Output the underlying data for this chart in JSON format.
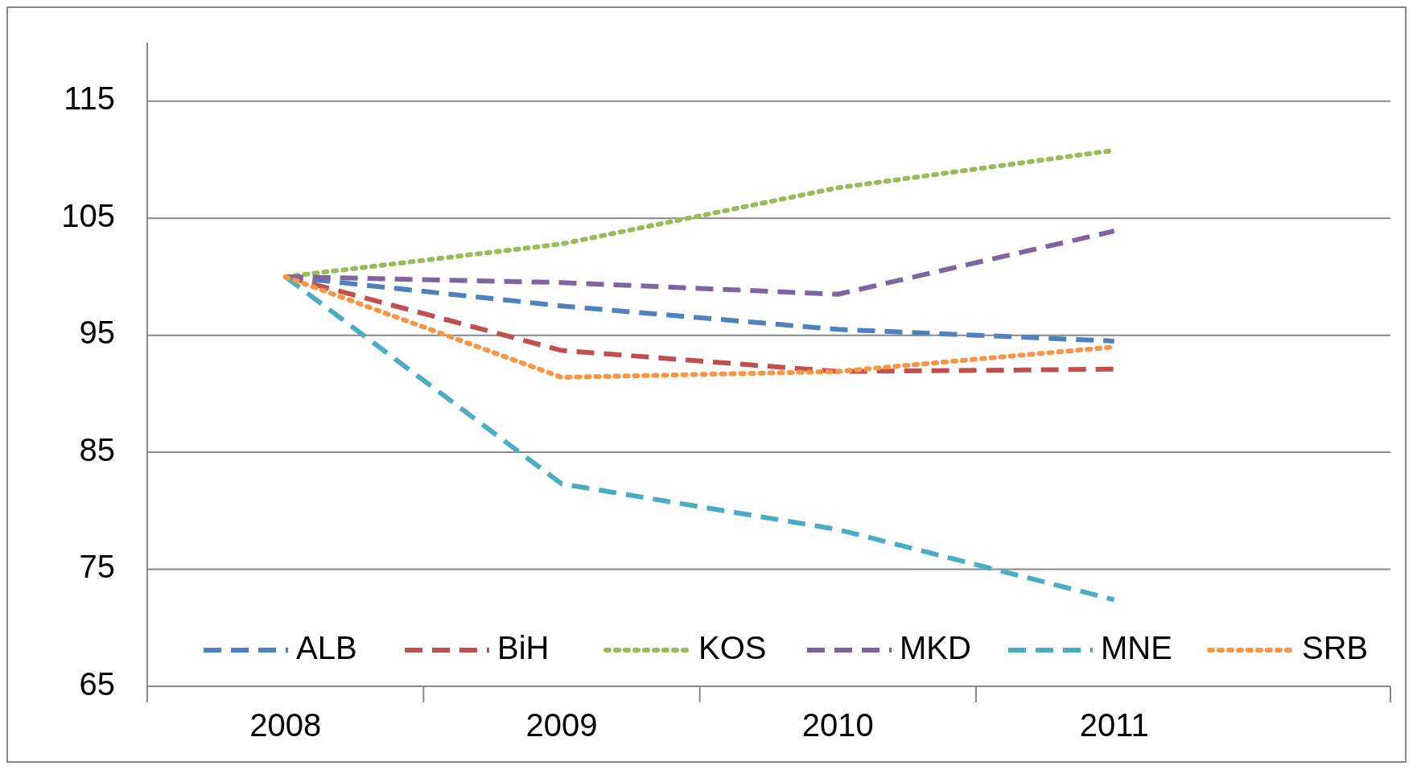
{
  "chart_data": {
    "type": "line",
    "categories": [
      "2008",
      "2009",
      "2010",
      "2011"
    ],
    "ylim": [
      65,
      120
    ],
    "yticks": [
      65,
      75,
      85,
      95,
      105,
      115
    ],
    "grid": "y",
    "legend": "bottom",
    "series": [
      {
        "name": "ALB",
        "color": "#4f81bd",
        "line_style": "dashed",
        "values": [
          100,
          97.5,
          95.5,
          94.5
        ]
      },
      {
        "name": "BiH",
        "color": "#c0504d",
        "line_style": "dashed",
        "values": [
          100,
          93.7,
          91.9,
          92.1
        ]
      },
      {
        "name": "KOS",
        "color": "#9bbb59",
        "line_style": "dotted",
        "values": [
          100,
          102.8,
          107.6,
          110.8
        ]
      },
      {
        "name": "MKD",
        "color": "#8064a2",
        "line_style": "dashed",
        "values": [
          100,
          99.5,
          98.5,
          103.9
        ]
      },
      {
        "name": "MNE",
        "color": "#4bacc6",
        "line_style": "dashed",
        "values": [
          100,
          82.3,
          78.4,
          72.4
        ]
      },
      {
        "name": "SRB",
        "color": "#f79646",
        "line_style": "dotted",
        "values": [
          100,
          91.4,
          91.9,
          94
        ]
      }
    ]
  }
}
